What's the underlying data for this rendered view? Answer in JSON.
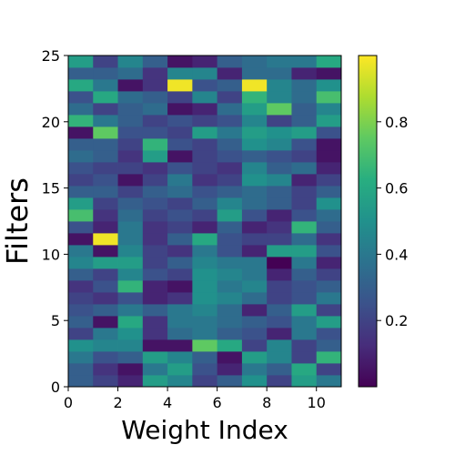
{
  "chart_data": {
    "type": "heatmap",
    "xlabel": "Weight Index",
    "ylabel": "Filters",
    "x_range": [
      0,
      11
    ],
    "y_range": [
      0,
      25
    ],
    "x_ticks": [
      0,
      2,
      4,
      6,
      8,
      10
    ],
    "y_ticks": [
      0,
      5,
      10,
      15,
      20,
      25
    ],
    "colorbar": {
      "range": [
        0.0,
        1.0
      ],
      "ticks": [
        0.2,
        0.4,
        0.6,
        0.8
      ],
      "colormap": "viridis"
    },
    "rows": [
      [
        0.3,
        0.2,
        0.1,
        0.55,
        0.45,
        0.2,
        0.3,
        0.5,
        0.2,
        0.55,
        0.4
      ],
      [
        0.3,
        0.15,
        0.05,
        0.4,
        0.55,
        0.25,
        0.1,
        0.4,
        0.3,
        0.6,
        0.2
      ],
      [
        0.4,
        0.25,
        0.3,
        0.55,
        0.45,
        0.3,
        0.05,
        0.55,
        0.45,
        0.2,
        0.65
      ],
      [
        0.5,
        0.45,
        0.45,
        0.05,
        0.05,
        0.75,
        0.6,
        0.2,
        0.45,
        0.2,
        0.3
      ],
      [
        0.2,
        0.4,
        0.5,
        0.15,
        0.35,
        0.4,
        0.3,
        0.25,
        0.1,
        0.4,
        0.25
      ],
      [
        0.3,
        0.05,
        0.6,
        0.15,
        0.4,
        0.4,
        0.35,
        0.3,
        0.25,
        0.4,
        0.55
      ],
      [
        0.25,
        0.3,
        0.4,
        0.3,
        0.4,
        0.45,
        0.35,
        0.1,
        0.3,
        0.55,
        0.2
      ],
      [
        0.2,
        0.15,
        0.25,
        0.1,
        0.15,
        0.5,
        0.45,
        0.35,
        0.2,
        0.25,
        0.4
      ],
      [
        0.15,
        0.25,
        0.65,
        0.1,
        0.05,
        0.5,
        0.4,
        0.45,
        0.2,
        0.25,
        0.3
      ],
      [
        0.3,
        0.2,
        0.45,
        0.25,
        0.2,
        0.5,
        0.45,
        0.4,
        0.1,
        0.3,
        0.2
      ],
      [
        0.45,
        0.55,
        0.55,
        0.2,
        0.3,
        0.45,
        0.4,
        0.4,
        0.0,
        0.4,
        0.1
      ],
      [
        0.4,
        0.05,
        0.45,
        0.2,
        0.15,
        0.4,
        0.25,
        0.1,
        0.55,
        0.55,
        0.25
      ],
      [
        0.05,
        0.98,
        0.4,
        0.15,
        0.3,
        0.6,
        0.25,
        0.2,
        0.2,
        0.35,
        0.15
      ],
      [
        0.25,
        0.1,
        0.4,
        0.15,
        0.2,
        0.1,
        0.3,
        0.1,
        0.15,
        0.65,
        0.3
      ],
      [
        0.7,
        0.15,
        0.35,
        0.2,
        0.25,
        0.2,
        0.55,
        0.25,
        0.1,
        0.25,
        0.35
      ],
      [
        0.55,
        0.2,
        0.3,
        0.25,
        0.2,
        0.3,
        0.45,
        0.35,
        0.3,
        0.2,
        0.5
      ],
      [
        0.3,
        0.3,
        0.2,
        0.3,
        0.35,
        0.25,
        0.3,
        0.35,
        0.3,
        0.2,
        0.3
      ],
      [
        0.2,
        0.25,
        0.05,
        0.2,
        0.4,
        0.15,
        0.2,
        0.5,
        0.45,
        0.1,
        0.2
      ],
      [
        0.25,
        0.2,
        0.2,
        0.15,
        0.25,
        0.2,
        0.15,
        0.45,
        0.3,
        0.35,
        0.1
      ],
      [
        0.35,
        0.3,
        0.15,
        0.55,
        0.05,
        0.2,
        0.25,
        0.3,
        0.25,
        0.2,
        0.05
      ],
      [
        0.3,
        0.3,
        0.2,
        0.65,
        0.25,
        0.2,
        0.3,
        0.5,
        0.45,
        0.25,
        0.05
      ],
      [
        0.05,
        0.75,
        0.25,
        0.25,
        0.2,
        0.55,
        0.4,
        0.55,
        0.5,
        0.55,
        0.25
      ],
      [
        0.65,
        0.4,
        0.3,
        0.2,
        0.25,
        0.2,
        0.25,
        0.45,
        0.2,
        0.3,
        0.55
      ],
      [
        0.35,
        0.2,
        0.3,
        0.35,
        0.05,
        0.1,
        0.35,
        0.55,
        0.75,
        0.3,
        0.45
      ],
      [
        0.25,
        0.6,
        0.35,
        0.3,
        0.2,
        0.45,
        0.2,
        0.65,
        0.45,
        0.35,
        0.7
      ],
      [
        0.6,
        0.4,
        0.05,
        0.15,
        0.98,
        0.25,
        0.3,
        0.98,
        0.45,
        0.35,
        0.5
      ],
      [
        0.3,
        0.3,
        0.35,
        0.15,
        0.45,
        0.45,
        0.1,
        0.35,
        0.35,
        0.1,
        0.05
      ],
      [
        0.55,
        0.2,
        0.45,
        0.3,
        0.05,
        0.1,
        0.3,
        0.35,
        0.4,
        0.4,
        0.6
      ]
    ]
  }
}
